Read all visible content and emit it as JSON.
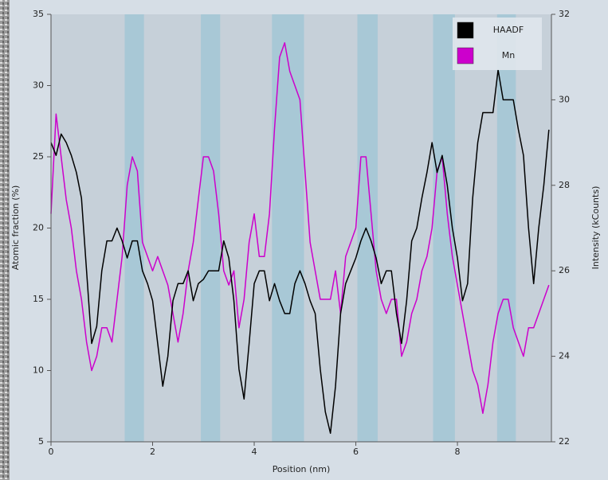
{
  "chart_data": {
    "type": "line",
    "xlabel": "Position (nm)",
    "ylabel": "Atomic fraction (%)",
    "y2label": "Intensity (kCounts)",
    "xlim": [
      0,
      9.85
    ],
    "xticks": [
      0,
      2,
      4,
      6,
      8
    ],
    "ylim": [
      5,
      35
    ],
    "yticks": [
      5,
      10,
      15,
      20,
      25,
      30,
      35
    ],
    "y2lim": [
      22,
      32
    ],
    "y2ticks": [
      22,
      24,
      26,
      28,
      30,
      32
    ],
    "legend": "upper right",
    "bands": [
      [
        1.45,
        1.83
      ],
      [
        2.95,
        3.33
      ],
      [
        4.35,
        4.98
      ],
      [
        6.03,
        6.43
      ],
      [
        7.52,
        7.95
      ],
      [
        8.78,
        9.15
      ]
    ],
    "band_color": "#a8c8d6",
    "x": [
      0,
      0.1,
      0.2,
      0.3,
      0.4,
      0.5,
      0.6,
      0.7,
      0.8,
      0.9,
      1,
      1.1,
      1.2,
      1.3,
      1.4,
      1.5,
      1.6,
      1.7,
      1.8,
      1.9,
      2,
      2.1,
      2.2,
      2.3,
      2.4,
      2.5,
      2.6,
      2.7,
      2.8,
      2.9,
      3,
      3.1,
      3.2,
      3.3,
      3.4,
      3.5,
      3.6,
      3.7,
      3.8,
      3.9,
      4,
      4.1,
      4.2,
      4.3,
      4.4,
      4.5,
      4.6,
      4.7,
      4.8,
      4.9,
      5,
      5.1,
      5.2,
      5.3,
      5.4,
      5.5,
      5.6,
      5.7,
      5.8,
      5.9,
      6,
      6.1,
      6.2,
      6.3,
      6.4,
      6.5,
      6.6,
      6.7,
      6.8,
      6.9,
      7,
      7.1,
      7.2,
      7.3,
      7.4,
      7.5,
      7.6,
      7.7,
      7.8,
      7.9,
      8,
      8.1,
      8.2,
      8.3,
      8.4,
      8.5,
      8.6,
      8.7,
      8.8,
      8.9,
      9,
      9.1,
      9.2,
      9.3,
      9.4,
      9.5,
      9.6,
      9.7,
      9.8
    ],
    "series": [
      {
        "name": "HAADF",
        "color": "#000000",
        "axis": "y2",
        "values": [
          29.0,
          28.7,
          29.2,
          29.0,
          28.7,
          28.3,
          27.7,
          26.0,
          24.3,
          24.7,
          26.0,
          26.7,
          26.7,
          27.0,
          26.7,
          26.3,
          26.7,
          26.7,
          26.0,
          25.7,
          25.3,
          24.3,
          23.3,
          24.0,
          25.3,
          25.7,
          25.7,
          26.0,
          25.3,
          25.7,
          25.8,
          26.0,
          26.0,
          26.0,
          26.7,
          26.3,
          25.3,
          23.7,
          23.0,
          24.3,
          25.7,
          26.0,
          26.0,
          25.3,
          25.7,
          25.3,
          25.0,
          25.0,
          25.7,
          26.0,
          25.7,
          25.3,
          25.0,
          23.7,
          22.7,
          22.2,
          23.3,
          25.0,
          25.7,
          26.0,
          26.3,
          26.7,
          27.0,
          26.7,
          26.3,
          25.7,
          26.0,
          26.0,
          25.0,
          24.3,
          25.3,
          26.7,
          27.0,
          27.7,
          28.3,
          29.0,
          28.3,
          28.7,
          28.0,
          27.0,
          26.3,
          25.3,
          25.7,
          27.7,
          29.0,
          29.7,
          29.7,
          29.7,
          30.7,
          30.0,
          30.0,
          30.0,
          29.3,
          28.7,
          27.0,
          25.7,
          27.0,
          28.0,
          29.3
        ]
      },
      {
        "name": "Mn",
        "color": "#cc00cc",
        "values": [
          21,
          28,
          25,
          22,
          20,
          17,
          15,
          12,
          10,
          11,
          13,
          13,
          12,
          15,
          18,
          23,
          25,
          24,
          19,
          18,
          17,
          18,
          17,
          16,
          14,
          12,
          14,
          17,
          19,
          22,
          25,
          25,
          24,
          21,
          17,
          16,
          17,
          13,
          15,
          19,
          21,
          18,
          18,
          21,
          27,
          32,
          33,
          31,
          30,
          29,
          24,
          19,
          17,
          15,
          15,
          15,
          17,
          14,
          18,
          19,
          20,
          25,
          25,
          21,
          17,
          15,
          14,
          15,
          15,
          11,
          12,
          14,
          15,
          17,
          18,
          20,
          24,
          25,
          21,
          18,
          16,
          14,
          12,
          10,
          9,
          7,
          9,
          12,
          14,
          15,
          15,
          13,
          12,
          11,
          13,
          13,
          14,
          15,
          16
        ]
      }
    ]
  }
}
